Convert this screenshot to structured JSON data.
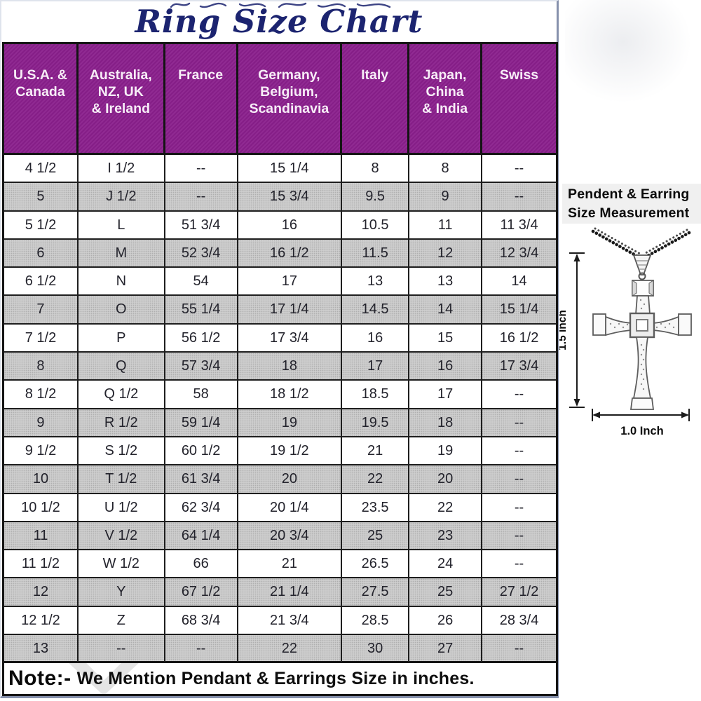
{
  "page": {
    "title": "Ring Size Chart"
  },
  "table": {
    "columns": [
      "U.S.A. &\nCanada",
      "Australia,\nNZ, UK\n& Ireland",
      "France",
      "Germany,\nBelgium,\nScandinavia",
      "Italy",
      "Japan,\nChina\n& India",
      "Swiss"
    ],
    "rows": [
      [
        "4 1/2",
        "I 1/2",
        "--",
        "15 1/4",
        "8",
        "8",
        "--"
      ],
      [
        "5",
        "J 1/2",
        "--",
        "15 3/4",
        "9.5",
        "9",
        "--"
      ],
      [
        "5 1/2",
        "L",
        "51 3/4",
        "16",
        "10.5",
        "11",
        "11 3/4"
      ],
      [
        "6",
        "M",
        "52 3/4",
        "16 1/2",
        "11.5",
        "12",
        "12 3/4"
      ],
      [
        "6 1/2",
        "N",
        "54",
        "17",
        "13",
        "13",
        "14"
      ],
      [
        "7",
        "O",
        "55 1/4",
        "17 1/4",
        "14.5",
        "14",
        "15 1/4"
      ],
      [
        "7 1/2",
        "P",
        "56 1/2",
        "17 3/4",
        "16",
        "15",
        "16 1/2"
      ],
      [
        "8",
        "Q",
        "57 3/4",
        "18",
        "17",
        "16",
        "17 3/4"
      ],
      [
        "8 1/2",
        "Q 1/2",
        "58",
        "18 1/2",
        "18.5",
        "17",
        "--"
      ],
      [
        "9",
        "R 1/2",
        "59 1/4",
        "19",
        "19.5",
        "18",
        "--"
      ],
      [
        "9 1/2",
        "S 1/2",
        "60 1/2",
        "19 1/2",
        "21",
        "19",
        "--"
      ],
      [
        "10",
        "T 1/2",
        "61 3/4",
        "20",
        "22",
        "20",
        "--"
      ],
      [
        "10 1/2",
        "U 1/2",
        "62 3/4",
        "20 1/4",
        "23.5",
        "22",
        "--"
      ],
      [
        "11",
        "V 1/2",
        "64 1/4",
        "20 3/4",
        "25",
        "23",
        "--"
      ],
      [
        "11 1/2",
        "W 1/2",
        "66",
        "21",
        "26.5",
        "24",
        "--"
      ],
      [
        "12",
        "Y",
        "67 1/2",
        "21 1/4",
        "27.5",
        "25",
        "27 1/2"
      ],
      [
        "12 1/2",
        "Z",
        "68 3/4",
        "21 3/4",
        "28.5",
        "26",
        "28 3/4"
      ],
      [
        "13",
        "--",
        "--",
        "22",
        "30",
        "27",
        "--"
      ]
    ]
  },
  "note": {
    "label": "Note:-",
    "text": "We Mention Pendant & Earrings Size in inches."
  },
  "side_panel": {
    "heading_line1": "Pendent & Earring",
    "heading_line2": "Size Measurement",
    "height_label": "1.5 Inch",
    "width_label": "1.0 Inch"
  },
  "colors": {
    "header_bg": "#8a1f8c",
    "header_text": "#f7edf7",
    "row_alt": "#cdcdcd",
    "grid_line": "#1e1e1e",
    "title_color": "#1c2470",
    "frame_edge": "#8691ac",
    "panel_heading_bg": "#f0f0f0"
  }
}
